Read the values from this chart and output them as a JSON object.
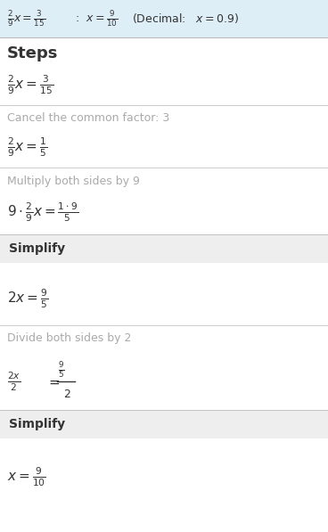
{
  "bg_color": "#ffffff",
  "header_bg": "#eeeeee",
  "title_bg": "#e8f4f8",
  "text_color": "#333333",
  "gray_text": "#aaaaaa",
  "line_color": "#cccccc",
  "figsize": [
    3.68,
    5.97
  ],
  "dpi": 100,
  "title_line_parts": [
    {
      "text": "$\\frac{2}{9}x = \\frac{3}{15}$",
      "style": "math"
    },
    {
      "text": "  :  ",
      "style": "plain"
    },
    {
      "text": "$x = \\frac{9}{10}$",
      "style": "math"
    },
    {
      "text": "   (Decimal:   ",
      "style": "plain"
    },
    {
      "text": "$x = 0.9$",
      "style": "math"
    },
    {
      "text": ")",
      "style": "plain"
    }
  ],
  "steps_label": "Steps",
  "step1_eq": "$\\frac{2}{9}x = \\frac{3}{15}$",
  "step2_note": "Cancel the common factor: 3",
  "step2_eq": "$\\frac{2}{9}x = \\frac{1}{5}$",
  "step3_note": "Multiply both sides by 9",
  "step3_eq": "$9 \\cdot \\frac{2}{9}x = \\frac{1 \\cdot 9}{5}$",
  "simplify1_label": "Simplify",
  "step4_eq": "$2x = \\frac{9}{5}$",
  "step5_note": "Divide both sides by 2",
  "step5_lhs": "$\\frac{2x}{2}$",
  "step5_eq_sign": "$=$",
  "step5_rhs": "$\\frac{\\dfrac{9}{5}}{2}$",
  "simplify2_label": "Simplify",
  "step6_eq": "$x = \\frac{9}{10}$"
}
